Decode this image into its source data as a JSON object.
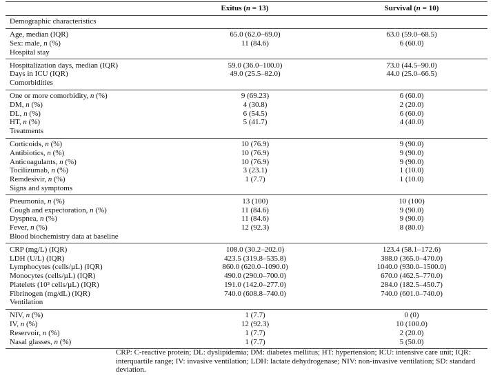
{
  "header": {
    "columns": [
      "Exitus (n = 13)",
      "Survival (n = 10)"
    ]
  },
  "sections": [
    {
      "title": "Demographic characteristics",
      "rows": [
        [
          "Age, median (IQR)",
          "65.0 (62.0–69.0)",
          "63.0 (59.0–68.5)"
        ],
        [
          "Sex: male, n (%)",
          "11 (84.6)",
          "6 (60.0)"
        ]
      ]
    },
    {
      "title": "Hospital stay",
      "rows": [
        [
          "Hospitalization days, median (IQR)",
          "59.0 (36.0–100.0)",
          "73.0 (44.5–90.0)"
        ],
        [
          "Days in ICU (IQR)",
          "49.0 (25.5–82.0)",
          "44.0 (25.0–66.5)"
        ]
      ]
    },
    {
      "title": "Comorbidities",
      "rows": [
        [
          "One or more comorbidity, n (%)",
          "9 (69.23)",
          "6 (60.0)"
        ],
        [
          "DM, n (%)",
          "4 (30.8)",
          "2 (20.0)"
        ],
        [
          "DL, n (%)",
          "6 (54.5)",
          "6 (60.0)"
        ],
        [
          "HT, n (%)",
          "5 (41.7)",
          "4 (40.0)"
        ]
      ]
    },
    {
      "title": "Treatments",
      "rows": [
        [
          "Corticoids, n (%)",
          "10 (76.9)",
          "9 (90.0)"
        ],
        [
          "Antibiotics, n (%)",
          "10 (76.9)",
          "9 (90.0)"
        ],
        [
          "Anticoagulants, n (%)",
          "10 (76.9)",
          "9 (90.0)"
        ],
        [
          "Tocilizumab, n (%)",
          "3 (23.1)",
          "1 (10.0)"
        ],
        [
          "Remdesivir, n (%)",
          "1 (7.7)",
          "1 (10.0)"
        ]
      ]
    },
    {
      "title": "Signs and symptoms",
      "rows": [
        [
          "Pneumonia, n (%)",
          "13 (100)",
          "10 (100)"
        ],
        [
          "Cough and expectoration, n (%)",
          "11 (84.6)",
          "9 (90.0)"
        ],
        [
          "Dyspnea, n (%)",
          "11 (84.6)",
          "9 (90.0)"
        ],
        [
          "Fever, n (%)",
          "12 (92.3)",
          "8 (80.0)"
        ]
      ]
    },
    {
      "title": "Blood biochemistry data at baseline",
      "rows": [
        [
          "CRP (mg/L) (IQR)",
          "108.0 (30.2–202.0)",
          "123.4 (58.1–172.6)"
        ],
        [
          "LDH (U/L) (IQR)",
          "423.5 (319.8–535.8)",
          "388.0 (365.0–470.0)"
        ],
        [
          "Lymphocytes (cells/µL) (IQR)",
          "860.0 (620.0–1090.0)",
          "1040.0 (930.0–1500.0)"
        ],
        [
          "Monocytes (cells/µL) (IQR)",
          "490.0 (290.0–700.0)",
          "670.0 (462.5–770.0)"
        ],
        [
          "Platelets (10³ cells/µL) (IQR)",
          "191.0 (142.0–277.0)",
          "284.0 (182.5–450.7)"
        ],
        [
          "Fibrinogen (mg/dL) (IQR)",
          "740.0 (608.8–740.0)",
          "740.0 (601.0–740.0)"
        ]
      ]
    },
    {
      "title": "Ventilation",
      "rows": [
        [
          "NIV, n (%)",
          "1 (7.7)",
          "0 (0)"
        ],
        [
          "IV, n (%)",
          "12 (92.3)",
          "10 (100.0)"
        ],
        [
          "Reservoir, n (%)",
          "1 (7.7)",
          "2 (20.0)"
        ],
        [
          "Nasal glasses, n (%)",
          "1 (7.7)",
          "5 (50.0)"
        ]
      ]
    }
  ],
  "footnote": "CRP: C-reactive protein; DL: dyslipidemia; DM: diabetes mellitus; HT: hypertension; ICU: intensive care unit; IQR: interquartile range; IV: invasive ventilation; LDH: lactate dehydrogenase; NIV: non-invasive ventilation; SD: standard deviation."
}
